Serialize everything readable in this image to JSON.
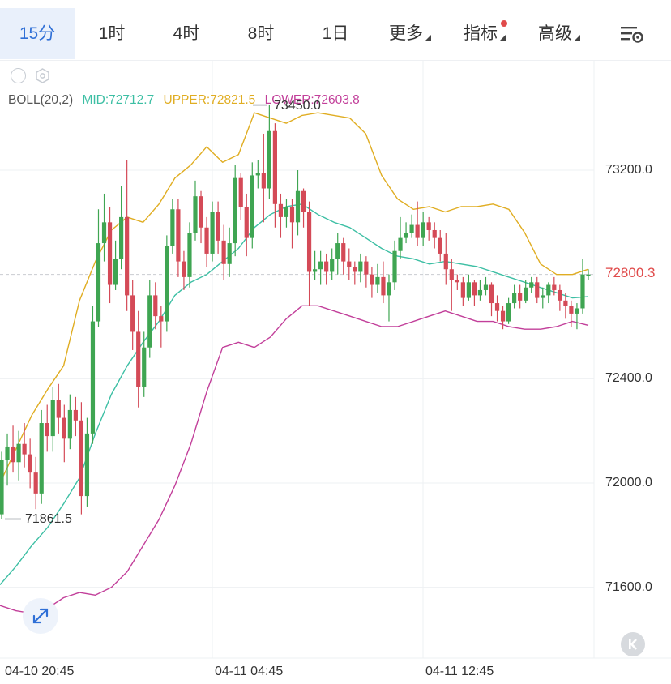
{
  "toolbar": {
    "tabs": [
      {
        "label": "15分",
        "active": true
      },
      {
        "label": "1时",
        "active": false
      },
      {
        "label": "4时",
        "active": false
      },
      {
        "label": "8时",
        "active": false
      },
      {
        "label": "1日",
        "active": false
      },
      {
        "label": "更多",
        "active": false,
        "dropdown": true
      },
      {
        "label": "指标",
        "active": false,
        "dropdown": true,
        "badge": true
      },
      {
        "label": "高级",
        "active": false,
        "dropdown": true
      }
    ],
    "settings_icon": "chart-settings-icon"
  },
  "indicator": {
    "name": "BOLL(20,2)",
    "mid": "MID:72712.7",
    "upper": "UPPER:72821.5",
    "lower": "LOWER:72603.8",
    "colors": {
      "mid": "#3dbfa4",
      "upper": "#e0ad22",
      "lower": "#c23f9a"
    }
  },
  "annotations": {
    "high": "73450.0",
    "low": "71861.5"
  },
  "current_price": "72800.3",
  "colors": {
    "up": "#3fa552",
    "down": "#d44a57",
    "grid": "#eef0f3",
    "accent": "#2f6fd6"
  },
  "chart_data": {
    "type": "candlestick",
    "y_ticks": [
      "73200.0",
      "72800.3",
      "72400.0",
      "72000.0",
      "71600.0"
    ],
    "x_ticks": [
      "04-10 20:45",
      "04-11 04:45",
      "04-11 12:45"
    ],
    "ylim": [
      71450,
      73560
    ],
    "last_price": 72800.3,
    "period": "15分",
    "candles": [
      [
        71880,
        72090,
        71861,
        72120
      ],
      [
        72090,
        72140,
        71990,
        72190
      ],
      [
        72140,
        72080,
        72040,
        72220
      ],
      [
        72080,
        72150,
        72010,
        72200
      ],
      [
        72150,
        72110,
        72060,
        72230
      ],
      [
        72110,
        72040,
        71980,
        72170
      ],
      [
        72040,
        71960,
        71900,
        72100
      ],
      [
        71960,
        72230,
        71920,
        72280
      ],
      [
        72230,
        72180,
        72120,
        72300
      ],
      [
        72180,
        72320,
        72120,
        72370
      ],
      [
        72320,
        72250,
        72190,
        72380
      ],
      [
        72250,
        72170,
        72080,
        72300
      ],
      [
        72170,
        72280,
        72130,
        72340
      ],
      [
        72280,
        72240,
        72180,
        72330
      ],
      [
        72240,
        71950,
        71880,
        72310
      ],
      [
        71950,
        72190,
        71910,
        72250
      ],
      [
        72190,
        72620,
        72150,
        72680
      ],
      [
        72620,
        72920,
        72600,
        73050
      ],
      [
        72920,
        73000,
        72850,
        73110
      ],
      [
        73000,
        72760,
        72690,
        73060
      ],
      [
        72760,
        72860,
        72740,
        72930
      ],
      [
        72860,
        73020,
        72820,
        73140
      ],
      [
        73020,
        72720,
        72660,
        73240
      ],
      [
        72720,
        72580,
        72510,
        72780
      ],
      [
        72580,
        72370,
        72290,
        72660
      ],
      [
        72370,
        72520,
        72330,
        72580
      ],
      [
        72520,
        72720,
        72480,
        72780
      ],
      [
        72720,
        72640,
        72590,
        72770
      ],
      [
        72640,
        72620,
        72520,
        72680
      ],
      [
        72620,
        72910,
        72580,
        72950
      ],
      [
        72910,
        73050,
        72880,
        73090
      ],
      [
        73050,
        72850,
        72790,
        73090
      ],
      [
        72850,
        72790,
        72740,
        72890
      ],
      [
        72790,
        72960,
        72750,
        73000
      ],
      [
        72960,
        73100,
        72930,
        73160
      ],
      [
        73100,
        72980,
        72920,
        73120
      ],
      [
        72980,
        72880,
        72830,
        73020
      ],
      [
        72880,
        73040,
        72850,
        73080
      ],
      [
        73040,
        72930,
        72880,
        73080
      ],
      [
        72930,
        72840,
        72780,
        72990
      ],
      [
        72840,
        72920,
        72790,
        72980
      ],
      [
        72920,
        73170,
        72870,
        73220
      ],
      [
        73170,
        73060,
        73010,
        73190
      ],
      [
        73060,
        72940,
        72870,
        73110
      ],
      [
        72940,
        73180,
        72900,
        73230
      ],
      [
        73180,
        73190,
        73130,
        73240
      ],
      [
        73190,
        73130,
        73000,
        73340
      ],
      [
        73130,
        73350,
        73090,
        73450
      ],
      [
        73350,
        73070,
        72980,
        73380
      ],
      [
        73070,
        73020,
        72940,
        73110
      ],
      [
        73020,
        73060,
        72980,
        73090
      ],
      [
        73060,
        73000,
        72900,
        73090
      ],
      [
        73000,
        73120,
        72950,
        73200
      ],
      [
        73120,
        73040,
        72980,
        73130
      ],
      [
        73040,
        72810,
        72680,
        73080
      ],
      [
        72810,
        72820,
        72780,
        72890
      ],
      [
        72820,
        72850,
        72760,
        72890
      ],
      [
        72850,
        72810,
        72760,
        72880
      ],
      [
        72810,
        72860,
        72780,
        72900
      ],
      [
        72860,
        72920,
        72800,
        72960
      ],
      [
        72920,
        72850,
        72800,
        72940
      ],
      [
        72850,
        72830,
        72780,
        72900
      ],
      [
        72830,
        72810,
        72760,
        72850
      ],
      [
        72810,
        72850,
        72770,
        72880
      ],
      [
        72850,
        72800,
        72750,
        72870
      ],
      [
        72800,
        72760,
        72710,
        72830
      ],
      [
        72760,
        72790,
        72730,
        72840
      ],
      [
        72790,
        72720,
        72690,
        72850
      ],
      [
        72720,
        72770,
        72620,
        72800
      ],
      [
        72770,
        72890,
        72740,
        72930
      ],
      [
        72890,
        72940,
        72860,
        73020
      ],
      [
        72940,
        72960,
        72920,
        73000
      ],
      [
        72960,
        72990,
        72940,
        73030
      ],
      [
        72990,
        72940,
        72910,
        73080
      ],
      [
        72940,
        73000,
        72910,
        73040
      ],
      [
        73000,
        72970,
        72930,
        73020
      ],
      [
        72970,
        72940,
        72900,
        73000
      ],
      [
        72940,
        72880,
        72850,
        72970
      ],
      [
        72880,
        72820,
        72760,
        72960
      ],
      [
        72820,
        72780,
        72660,
        72860
      ],
      [
        72780,
        72770,
        72740,
        72800
      ],
      [
        72770,
        72710,
        72680,
        72790
      ],
      [
        72710,
        72770,
        72700,
        72800
      ],
      [
        72770,
        72720,
        72680,
        72780
      ],
      [
        72720,
        72740,
        72700,
        72780
      ],
      [
        72740,
        72760,
        72720,
        72790
      ],
      [
        72760,
        72690,
        72640,
        72770
      ],
      [
        72690,
        72660,
        72620,
        72720
      ],
      [
        72660,
        72620,
        72590,
        72680
      ],
      [
        72620,
        72690,
        72610,
        72710
      ],
      [
        72690,
        72730,
        72670,
        72760
      ],
      [
        72730,
        72700,
        72670,
        72760
      ],
      [
        72700,
        72750,
        72690,
        72780
      ],
      [
        72750,
        72770,
        72730,
        72790
      ],
      [
        72770,
        72710,
        72690,
        72790
      ],
      [
        72710,
        72720,
        72670,
        72750
      ],
      [
        72720,
        72760,
        72690,
        72770
      ],
      [
        72760,
        72740,
        72720,
        72790
      ],
      [
        72740,
        72700,
        72660,
        72760
      ],
      [
        72700,
        72680,
        72630,
        72730
      ],
      [
        72680,
        72650,
        72600,
        72700
      ],
      [
        72650,
        72670,
        72590,
        72690
      ],
      [
        72670,
        72800,
        72650,
        72860
      ],
      [
        72800,
        72800,
        72780,
        72820
      ]
    ],
    "bands": {
      "upper": [
        72000,
        72130,
        72260,
        72360,
        72450,
        72700,
        72850,
        72970,
        73020,
        73000,
        73070,
        73170,
        73220,
        73290,
        73230,
        73260,
        73420,
        73400,
        73380,
        73410,
        73420,
        73410,
        73400,
        73340,
        73180,
        73090,
        73050,
        73060,
        73040,
        73060,
        73060,
        73070,
        73050,
        72960,
        72840,
        72800,
        72800,
        72820
      ],
      "mid": [
        71610,
        71680,
        71760,
        71830,
        71920,
        72020,
        72190,
        72340,
        72450,
        72540,
        72620,
        72720,
        72770,
        72800,
        72850,
        72900,
        72980,
        73030,
        73060,
        73070,
        73030,
        73000,
        72980,
        72940,
        72900,
        72870,
        72860,
        72840,
        72850,
        72840,
        72830,
        72810,
        72790,
        72770,
        72750,
        72730,
        72710,
        72715
      ],
      "lower": [
        71530,
        71510,
        71500,
        71520,
        71560,
        71580,
        71570,
        71600,
        71660,
        71760,
        71860,
        71990,
        72150,
        72350,
        72520,
        72540,
        72520,
        72560,
        72630,
        72680,
        72680,
        72660,
        72640,
        72620,
        72600,
        72600,
        72620,
        72640,
        72660,
        72640,
        72620,
        72620,
        72600,
        72590,
        72590,
        72600,
        72620,
        72605
      ]
    }
  }
}
